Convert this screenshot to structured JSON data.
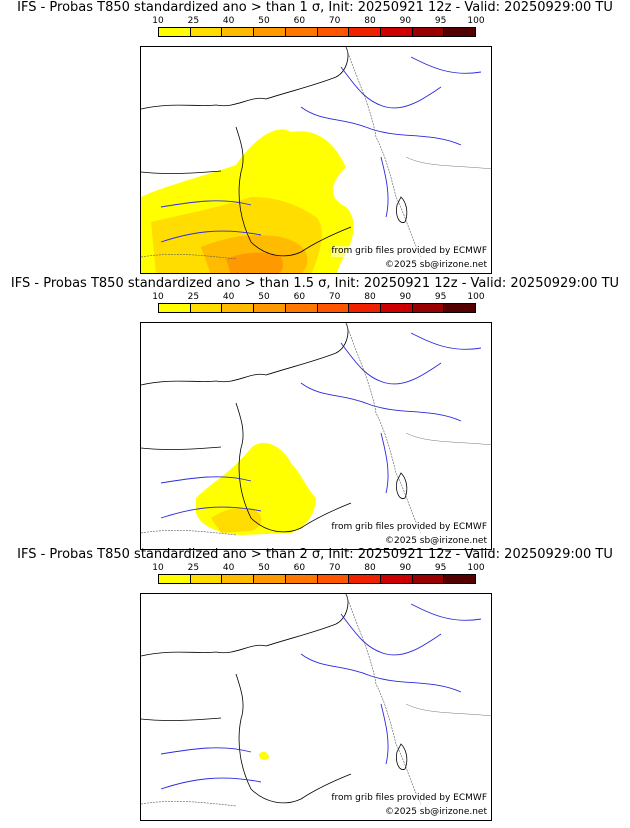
{
  "legend": {
    "ticks": [
      "10",
      "25",
      "40",
      "50",
      "60",
      "70",
      "80",
      "90",
      "95",
      "100"
    ],
    "colors": [
      "#ffff00",
      "#ffdd00",
      "#ffbb00",
      "#ff9900",
      "#ff7700",
      "#ff5500",
      "#ee2200",
      "#cc0000",
      "#990000",
      "#550000"
    ]
  },
  "panels": [
    {
      "title": "IFS - Probas T850  standardized ano > than 1 σ, Init: 20250921 12z - Valid: 20250929:00 TU",
      "source_credit": "from grib files provided by ECMWF",
      "copyright": "©2025 sb@irizone.net"
    },
    {
      "title": "IFS - Probas T850  standardized ano > than 1.5 σ, Init: 20250921 12z - Valid: 20250929:00 TU",
      "source_credit": "from grib files provided by ECMWF",
      "copyright": "©2025 sb@irizone.net"
    },
    {
      "title": "IFS - Probas T850  standardized ano > than 2 σ, Init: 20250921 12z - Valid: 20250929:00 TU",
      "source_credit": "from grib files provided by ECMWF",
      "copyright": "©2025 sb@irizone.net"
    }
  ]
}
